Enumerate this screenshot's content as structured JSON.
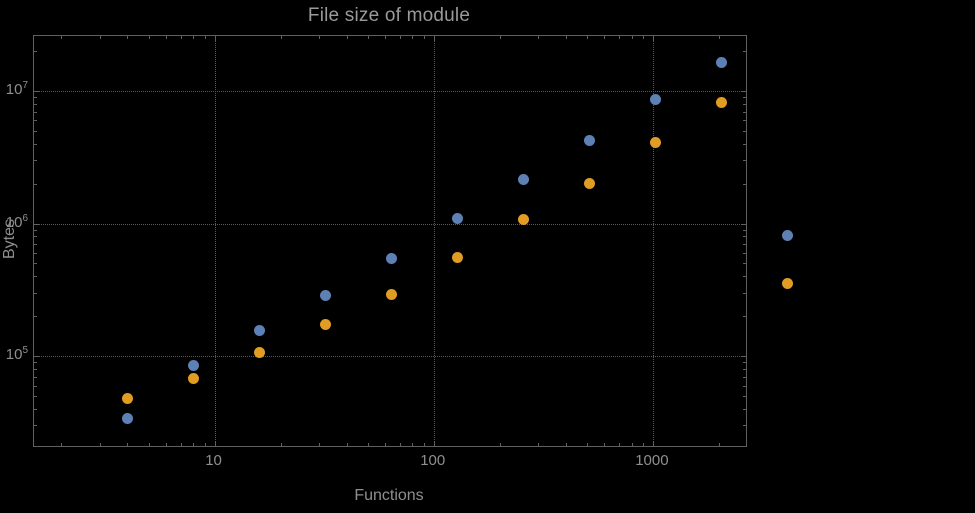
{
  "colors": {
    "background": "#000000",
    "frame": "#606060",
    "grid": "#5a5a5a",
    "text": "#8f8f8f",
    "title": "#9a9a9a",
    "series1": "#5E81B5",
    "series2": "#E19C24"
  },
  "chart_data": {
    "type": "scatter",
    "title": "File size of module",
    "xlabel": "Functions",
    "ylabel": "Bytes",
    "xscale": "log",
    "yscale": "log",
    "grid": true,
    "legend": "none",
    "xlim": [
      1.5,
      2660
    ],
    "ylim": [
      21000,
      26000000
    ],
    "x_ticks": [
      {
        "value": 10,
        "label": "10"
      },
      {
        "value": 100,
        "label": "100"
      },
      {
        "value": 1000,
        "label": "1000"
      }
    ],
    "y_ticks": [
      {
        "value": 100000,
        "base": "10",
        "exp": "5"
      },
      {
        "value": 1000000,
        "base": "10",
        "exp": "6"
      },
      {
        "value": 10000000,
        "base": "10",
        "exp": "7"
      }
    ],
    "series": [
      {
        "name": "blue",
        "color": "#5E81B5",
        "x": [
          4,
          8,
          16,
          32,
          64,
          128,
          256,
          512,
          1024,
          2048,
          4096
        ],
        "y": [
          34000,
          85000,
          155000,
          285000,
          545000,
          1100000,
          2150000,
          4200000,
          8600000,
          16500000,
          820000
        ]
      },
      {
        "name": "orange",
        "color": "#E19C24",
        "x": [
          4,
          8,
          16,
          32,
          64,
          128,
          256,
          512,
          1024,
          2048,
          4096
        ],
        "y": [
          48000,
          68000,
          107000,
          172000,
          290000,
          550000,
          1070000,
          2000000,
          4100000,
          8200000,
          355000
        ]
      }
    ]
  }
}
